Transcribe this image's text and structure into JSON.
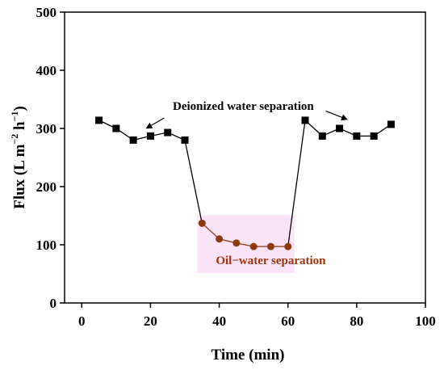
{
  "chart_data": {
    "type": "line",
    "xlabel": "Time (min)",
    "ylabel": "Flux (L m⁻² h⁻¹)",
    "ylabel_parts": {
      "main": "Flux (L m",
      "exp1": "−2",
      "mid": " h",
      "exp2": "−1",
      "end": ")"
    },
    "xlim": [
      -5,
      100
    ],
    "ylim": [
      0,
      500
    ],
    "xticks": [
      0,
      20,
      40,
      60,
      80,
      100
    ],
    "yticks": [
      0,
      100,
      200,
      300,
      400,
      500
    ],
    "grid": false,
    "series": [
      {
        "color": "#000000",
        "marker": "square",
        "x": [
          5,
          10,
          15,
          20,
          25,
          30
        ],
        "y": [
          314,
          300,
          280,
          287,
          293,
          280
        ]
      },
      {
        "color": "#8B3A0E",
        "marker": "circle",
        "x": [
          35,
          40,
          45,
          50,
          55,
          60
        ],
        "y": [
          137,
          110,
          103,
          97,
          97,
          97
        ]
      },
      {
        "color": "#000000",
        "marker": "square",
        "x": [
          65,
          70,
          75,
          80,
          85,
          90
        ],
        "y": [
          314,
          287,
          300,
          287,
          287,
          307
        ]
      }
    ],
    "connectors": [
      {
        "color": "#000000",
        "from": [
          30,
          280
        ],
        "to": [
          35,
          137
        ]
      },
      {
        "color": "#000000",
        "from": [
          60,
          97
        ],
        "to": [
          65,
          314
        ]
      }
    ],
    "annotations": [
      {
        "text": "Deionized water separation",
        "color": "#000000",
        "x": 47,
        "y": 332
      },
      {
        "text": "Oil−water separation",
        "color": "#A0320A",
        "x": 55,
        "y": 67,
        "highlight": "#F8C8F0"
      }
    ]
  }
}
